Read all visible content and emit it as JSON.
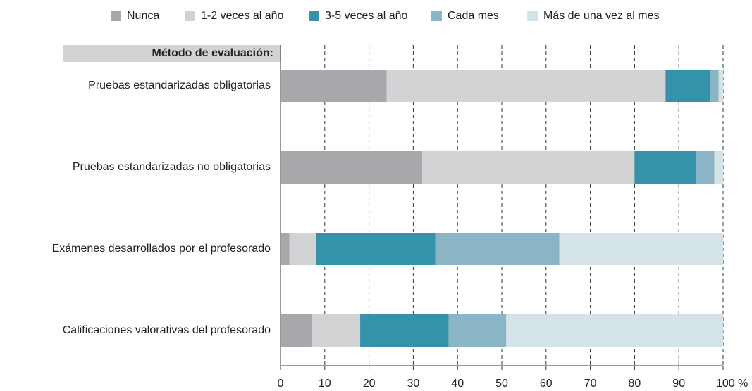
{
  "chart_data": {
    "type": "stacked_barh",
    "y_axis_label": "Método de evaluación:",
    "categories": [
      "Pruebas estandarizadas obligatorias",
      "Pruebas estandarizadas no obligatorias",
      "Exámenes desarrollados por el profesorado",
      "Calificaciones valorativas del profesorado"
    ],
    "series": [
      {
        "name": "Nunca",
        "color": "#a7a8ab",
        "values": [
          24,
          32,
          2,
          7
        ]
      },
      {
        "name": "1-2 veces al año",
        "color": "#d1d3d4",
        "values": [
          63,
          48,
          6,
          11
        ]
      },
      {
        "name": "3-5 veces al año",
        "color": "#3592ab",
        "values": [
          10,
          14,
          27,
          20
        ]
      },
      {
        "name": "Cada mes",
        "color": "#8ab5c5",
        "values": [
          2,
          4,
          28,
          13
        ]
      },
      {
        "name": "Más de una vez al mes",
        "color": "#d3e3e8",
        "values": [
          1,
          2,
          37,
          49
        ]
      }
    ],
    "xlim": [
      0,
      100
    ],
    "xticks": [
      0,
      10,
      20,
      30,
      40,
      50,
      60,
      70,
      80,
      90,
      {
        "value": 100,
        "label": "100 %"
      }
    ],
    "grid": true,
    "legend": "top"
  }
}
